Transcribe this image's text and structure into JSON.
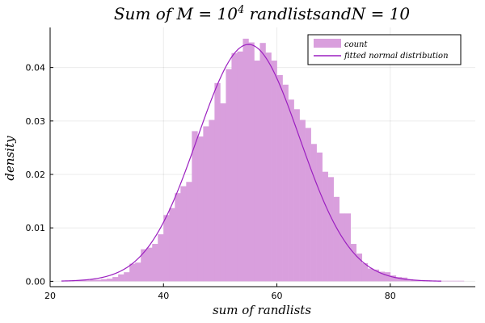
{
  "chart_data": {
    "type": "bar",
    "title": "Sum of M = 10^4 randlistsandN = 10",
    "title_parts": {
      "pre": "Sum of M = 10",
      "sup": "4",
      "post": " randlistsandN = 10"
    },
    "xlabel": "sum of randlists",
    "ylabel": "density",
    "xlim": [
      20,
      95
    ],
    "ylim": [
      -0.001,
      0.0475
    ],
    "xticks": [
      20,
      40,
      60,
      80
    ],
    "yticks": [
      0.0,
      0.01,
      0.02,
      0.03,
      0.04
    ],
    "ytick_labels": [
      "0.00",
      "0.01",
      "0.02",
      "0.03",
      "0.04"
    ],
    "grid": true,
    "legend_position": "top-right",
    "bin_width": 1,
    "bar_color": "#d99fdd",
    "line_color": "#9b1fc0",
    "series": [
      {
        "name": "count",
        "kind": "histogram",
        "bin_starts": [
          22,
          23,
          24,
          25,
          26,
          27,
          28,
          29,
          30,
          31,
          32,
          33,
          34,
          35,
          36,
          37,
          38,
          39,
          40,
          41,
          42,
          43,
          44,
          45,
          46,
          47,
          48,
          49,
          50,
          51,
          52,
          53,
          54,
          55,
          56,
          57,
          58,
          59,
          60,
          61,
          62,
          63,
          64,
          65,
          66,
          67,
          68,
          69,
          70,
          71,
          72,
          73,
          74,
          75,
          76,
          77,
          78,
          79,
          80,
          81,
          82,
          83,
          84,
          85,
          86,
          87,
          88,
          89,
          90,
          91,
          92
        ],
        "values": [
          0.0001,
          0.0001,
          0.0001,
          0.0002,
          0.0002,
          0.0003,
          0.0003,
          0.0004,
          0.0005,
          0.0008,
          0.0013,
          0.0017,
          0.0033,
          0.0035,
          0.006,
          0.0063,
          0.007,
          0.0088,
          0.0124,
          0.0137,
          0.0165,
          0.0178,
          0.0186,
          0.0281,
          0.0271,
          0.029,
          0.0302,
          0.0371,
          0.0333,
          0.0397,
          0.0427,
          0.043,
          0.0454,
          0.0447,
          0.0413,
          0.0446,
          0.0428,
          0.0413,
          0.0386,
          0.0368,
          0.034,
          0.0322,
          0.0302,
          0.0287,
          0.0257,
          0.0241,
          0.0205,
          0.0195,
          0.0158,
          0.0127,
          0.0127,
          0.007,
          0.0052,
          0.0034,
          0.0024,
          0.0022,
          0.0018,
          0.0017,
          0.0011,
          0.0008,
          0.0007,
          0.0004,
          0.0002,
          0.0002,
          0.0002,
          0.0001,
          0.0001,
          0.0001,
          0.0001,
          0.0001,
          0.0001
        ]
      },
      {
        "name": "fitted normal distribution",
        "kind": "normal_pdf",
        "mean": 55,
        "std": 9,
        "x_range": [
          22,
          89
        ]
      }
    ]
  }
}
